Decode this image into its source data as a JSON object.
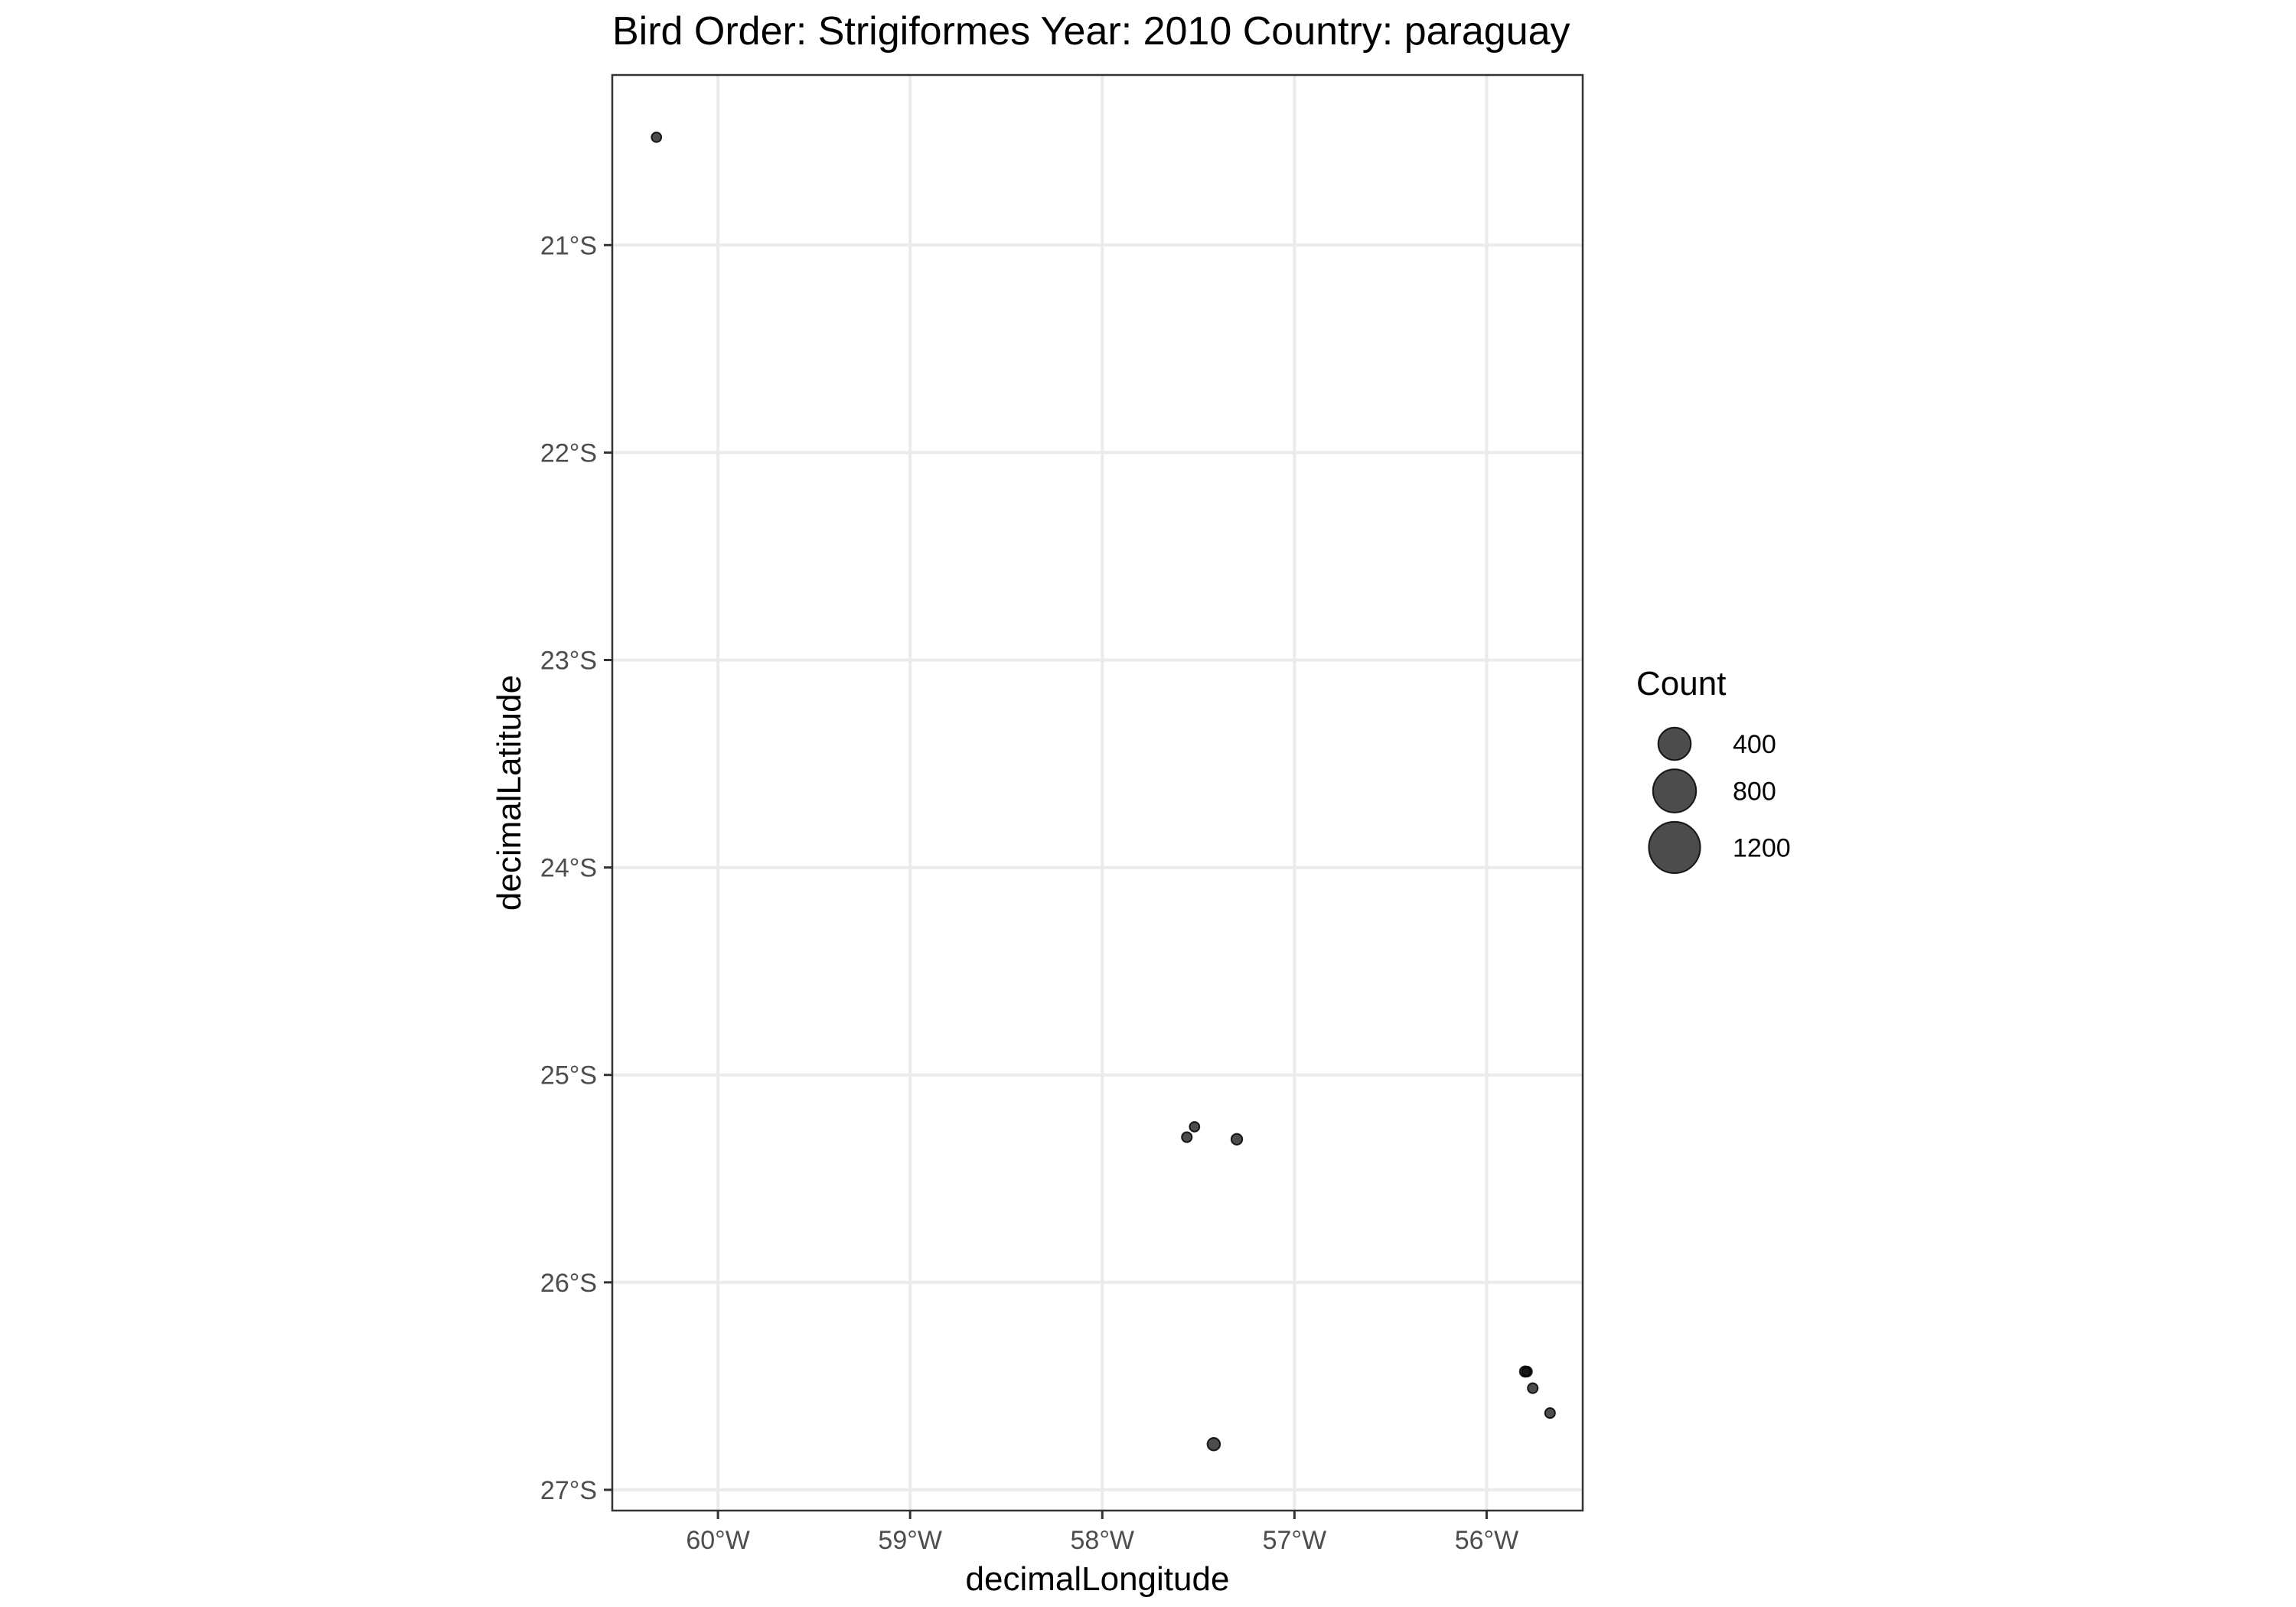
{
  "chart_data": {
    "type": "scatter",
    "title": "Bird Order: Strigiformes Year: 2010 Country: paraguay",
    "xlabel": "decimalLongitude",
    "ylabel": "decimalLatitude",
    "xlim": [
      -60.55,
      -55.5
    ],
    "ylim": [
      -27.1,
      -20.18
    ],
    "x_ticks": [
      {
        "value": -60,
        "label": "60°W"
      },
      {
        "value": -59,
        "label": "59°W"
      },
      {
        "value": -58,
        "label": "58°W"
      },
      {
        "value": -57,
        "label": "57°W"
      },
      {
        "value": -56,
        "label": "56°W"
      }
    ],
    "y_ticks": [
      {
        "value": -21,
        "label": "21°S"
      },
      {
        "value": -22,
        "label": "22°S"
      },
      {
        "value": -23,
        "label": "23°S"
      },
      {
        "value": -24,
        "label": "24°S"
      },
      {
        "value": -25,
        "label": "25°S"
      },
      {
        "value": -26,
        "label": "26°S"
      },
      {
        "value": -27,
        "label": "27°S"
      }
    ],
    "grid": true,
    "point_color": "#000000",
    "point_opacity": 0.7,
    "points": [
      {
        "lon": -60.32,
        "lat": -20.48,
        "count": 5
      },
      {
        "lon": -57.52,
        "lat": -25.25,
        "count": 5
      },
      {
        "lon": -57.56,
        "lat": -25.3,
        "count": 6
      },
      {
        "lon": -57.3,
        "lat": -25.31,
        "count": 10
      },
      {
        "lon": -57.42,
        "lat": -26.78,
        "count": 20
      },
      {
        "lon": -55.8,
        "lat": -26.43,
        "count": 8
      },
      {
        "lon": -55.79,
        "lat": -26.43,
        "count": 6
      },
      {
        "lon": -55.76,
        "lat": -26.51,
        "count": 6
      },
      {
        "lon": -55.67,
        "lat": -26.63,
        "count": 6
      }
    ],
    "legend": {
      "title": "Count",
      "position": "right",
      "entries": [
        {
          "value": 400,
          "label": "400"
        },
        {
          "value": 800,
          "label": "800"
        },
        {
          "value": 1200,
          "label": "1200"
        }
      ]
    }
  }
}
